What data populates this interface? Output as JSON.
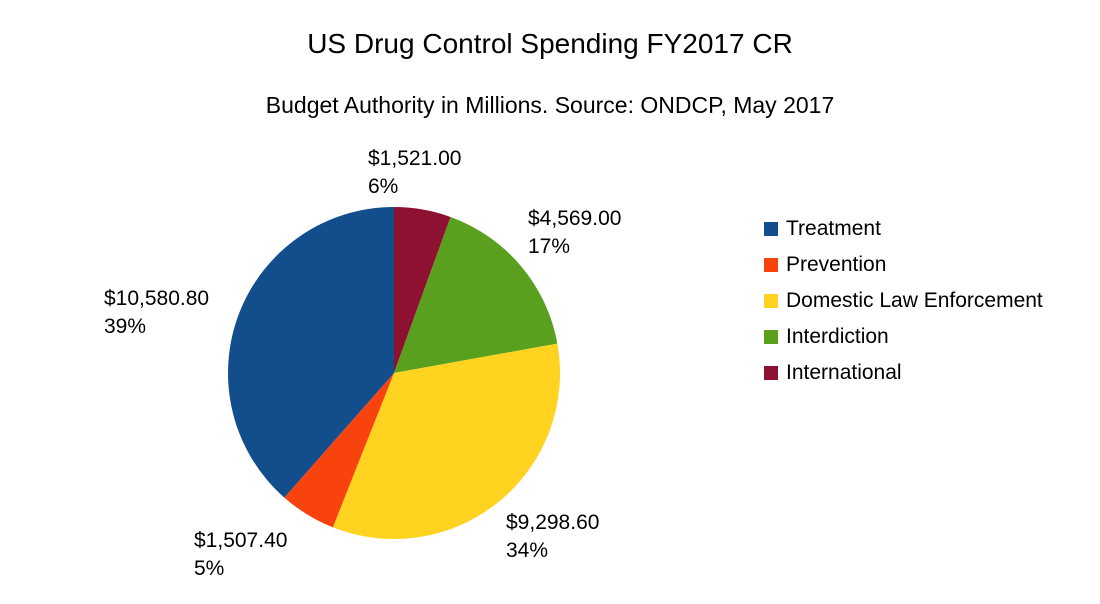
{
  "chart_data": {
    "type": "pie",
    "title": "US Drug Control Spending FY2017 CR",
    "subtitle": "Budget Authority in Millions. Source: ONDCP, May 2017",
    "legend_position": "right",
    "grid": false,
    "start_angle": "12-o-clock",
    "winding_in_series_order": "counterclockwise",
    "series": [
      {
        "name": "Treatment",
        "value": 10580.8,
        "value_label": "$10,580.80",
        "pct_label": "39%",
        "color": "#114E8B"
      },
      {
        "name": "Prevention",
        "value": 1507.4,
        "value_label": "$1,507.40",
        "pct_label": "5%",
        "color": "#F8430F"
      },
      {
        "name": "Domestic Law Enforcement",
        "value": 9298.6,
        "value_label": "$9,298.60",
        "pct_label": "34%",
        "color": "#FFD320"
      },
      {
        "name": "Interdiction",
        "value": 4569.0,
        "value_label": "$4,569.00",
        "pct_label": "17%",
        "color": "#58A01D"
      },
      {
        "name": "International",
        "value": 1521.0,
        "value_label": "$1,521.00",
        "pct_label": "6%",
        "color": "#8E1131"
      }
    ]
  }
}
